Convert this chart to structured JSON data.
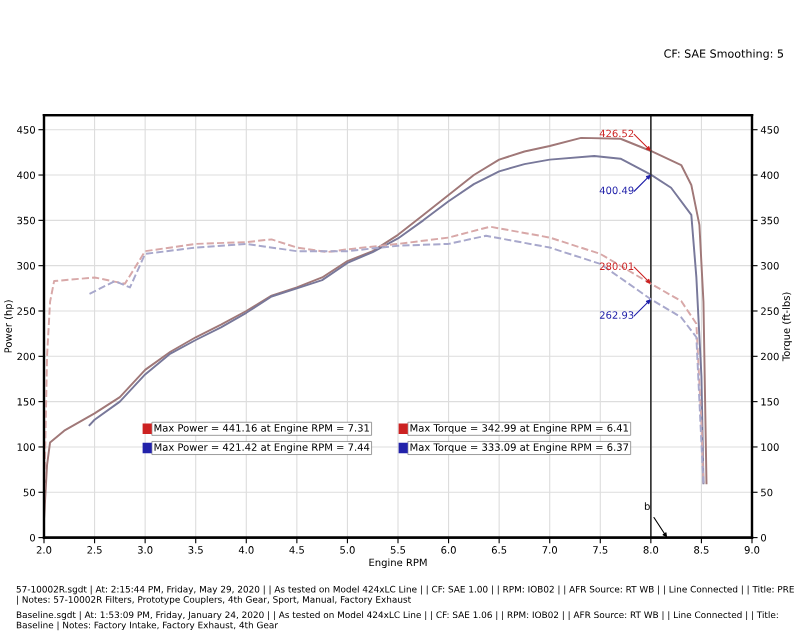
{
  "chart_data": {
    "type": "line",
    "subtitle": "CF: SAE Smoothing: 5",
    "xlabel": "Engine RPM",
    "ylabel": "Power (hp)",
    "y2label": "Torque (ft-lbs)",
    "xlim": [
      2.0,
      9.0
    ],
    "xticks": [
      {
        "value": 2.0,
        "label": "2.0"
      },
      2.5,
      {
        "value": 3.0,
        "label": "3.0"
      },
      3.5,
      {
        "value": 4.0,
        "label": "4.0"
      },
      4.5,
      {
        "value": 5.0,
        "label": "5.0"
      },
      5.5,
      {
        "value": 6.0,
        "label": "6.0"
      },
      6.5,
      {
        "value": 7.0,
        "label": "7.0"
      },
      7.5,
      {
        "value": 8.0,
        "label": "8.0"
      },
      8.5,
      {
        "value": 9.0,
        "label": "9.0"
      }
    ],
    "ylim": [
      0,
      466
    ],
    "yticks": [
      0,
      50,
      100,
      150,
      200,
      250,
      300,
      350,
      400,
      450
    ],
    "y2lim": [
      0,
      466
    ],
    "y2ticks": [
      0,
      50,
      100,
      150,
      200,
      250,
      300,
      350,
      400,
      450
    ],
    "grid": true,
    "legend": false,
    "series": [
      {
        "color": "#a07878",
        "line_style": "solid",
        "x": [
          2.0,
          2.03,
          2.06,
          2.2,
          2.5,
          2.75,
          3.0,
          3.25,
          3.5,
          3.75,
          4.0,
          4.25,
          4.5,
          4.75,
          5.0,
          5.25,
          5.5,
          5.75,
          6.0,
          6.25,
          6.5,
          6.75,
          7.0,
          7.31,
          7.7,
          8.0,
          8.3,
          8.4,
          8.48,
          8.52,
          8.55
        ],
        "values": [
          20,
          80,
          105,
          118,
          137,
          155,
          185,
          205,
          221,
          235,
          250,
          267,
          276,
          287,
          305,
          316,
          334,
          356,
          378,
          400,
          417,
          426,
          432,
          441,
          440,
          426.52,
          411,
          389,
          345,
          260,
          60
        ],
        "value_labels": [
          null,
          null,
          null,
          null,
          null,
          null,
          null,
          null,
          null,
          null,
          null,
          null,
          null,
          null,
          null,
          null,
          null,
          null,
          null,
          null,
          null,
          null,
          null,
          null,
          null,
          "426.52",
          null,
          null,
          null,
          null,
          null
        ]
      },
      {
        "color": "#78789a",
        "line_style": "solid",
        "x": [
          2.45,
          2.5,
          2.75,
          3.0,
          3.25,
          3.5,
          3.75,
          4.0,
          4.25,
          4.5,
          4.75,
          5.0,
          5.25,
          5.5,
          5.75,
          6.0,
          6.25,
          6.5,
          6.75,
          7.0,
          7.44,
          7.7,
          8.0,
          8.2,
          8.4,
          8.45,
          8.5,
          8.52
        ],
        "values": [
          124,
          130,
          150,
          180,
          203,
          218,
          232,
          248,
          266,
          275,
          284,
          303,
          315,
          330,
          350,
          371,
          390,
          404,
          412,
          417,
          421,
          418,
          400.49,
          386,
          356,
          287,
          178,
          60
        ],
        "value_labels": [
          null,
          null,
          null,
          null,
          null,
          null,
          null,
          null,
          null,
          null,
          null,
          null,
          null,
          null,
          null,
          null,
          null,
          null,
          null,
          null,
          null,
          null,
          "400.49",
          null,
          null,
          null,
          null,
          null
        ]
      },
      {
        "axis": "y2",
        "color": "#d8a8a8",
        "line_style": "dashed",
        "x": [
          2.0,
          2.03,
          2.06,
          2.1,
          2.5,
          2.8,
          3.0,
          3.5,
          4.0,
          4.25,
          4.5,
          4.8,
          5.0,
          5.5,
          6.0,
          6.41,
          7.0,
          7.5,
          8.0,
          8.3,
          8.45,
          8.5,
          8.52
        ],
        "values": [
          30,
          200,
          260,
          283,
          287,
          280,
          316,
          324,
          326,
          329,
          320,
          315,
          318,
          324,
          331,
          343,
          331,
          313,
          280.01,
          261,
          236,
          126,
          60
        ],
        "value_labels": [
          null,
          null,
          null,
          null,
          null,
          null,
          null,
          null,
          null,
          null,
          null,
          null,
          null,
          null,
          null,
          null,
          null,
          null,
          "280.01",
          null,
          null,
          null,
          null
        ]
      },
      {
        "axis": "y2",
        "color": "#a8a8cc",
        "line_style": "dashed",
        "x": [
          2.45,
          2.7,
          2.85,
          3.0,
          3.5,
          4.0,
          4.5,
          5.0,
          5.5,
          6.0,
          6.37,
          7.0,
          7.5,
          8.0,
          8.3,
          8.45,
          8.5,
          8.52
        ],
        "values": [
          269,
          283,
          276,
          313,
          320,
          324,
          316,
          316,
          322,
          324,
          333,
          320,
          302,
          262.93,
          243,
          221,
          104,
          60
        ],
        "value_labels": [
          null,
          null,
          null,
          null,
          null,
          null,
          null,
          null,
          null,
          null,
          null,
          null,
          null,
          "262.93",
          null,
          null,
          null,
          null
        ]
      }
    ],
    "ref_lines": [
      {
        "axis": "x",
        "value": 8.0,
        "color": "#333333",
        "line_style": "solid"
      }
    ],
    "annotations": [
      "b",
      {
        "text": "Max Power = 441.16 at Engine RPM = 7.31"
      },
      {
        "text": "Max Power = 421.42 at Engine RPM = 7.44"
      },
      {
        "text": "Max Torque = 342.99 at Engine RPM = 6.41"
      },
      {
        "text": "Max Torque = 333.09 at Engine RPM = 6.37"
      },
      {
        "text": "57-10002R.sgdt | At: 2:15:44 PM, Friday, May 29, 2020 | | As tested on Model 424xLC Line | | CF: SAE 1.00 | | RPM: IOB02 | | AFR Source: RT WB | | Line Connected | | Title: PRE | Notes: 57-10002R Filters, Prototype Couplers, 4th Gear, Sport, Manual, Factory Exhaust"
      },
      {
        "text": "Baseline.sgdt | At: 1:53:09 PM, Friday, January 24, 2020 | | As tested on Model 424xLC Line | | CF: SAE 1.06 | | RPM: IOB02 | | AFR Source: RT WB | | Line Connected | | Title: Baseline | Notes: Factory Intake, Factory Exhaust, 4th Gear"
      }
    ]
  }
}
